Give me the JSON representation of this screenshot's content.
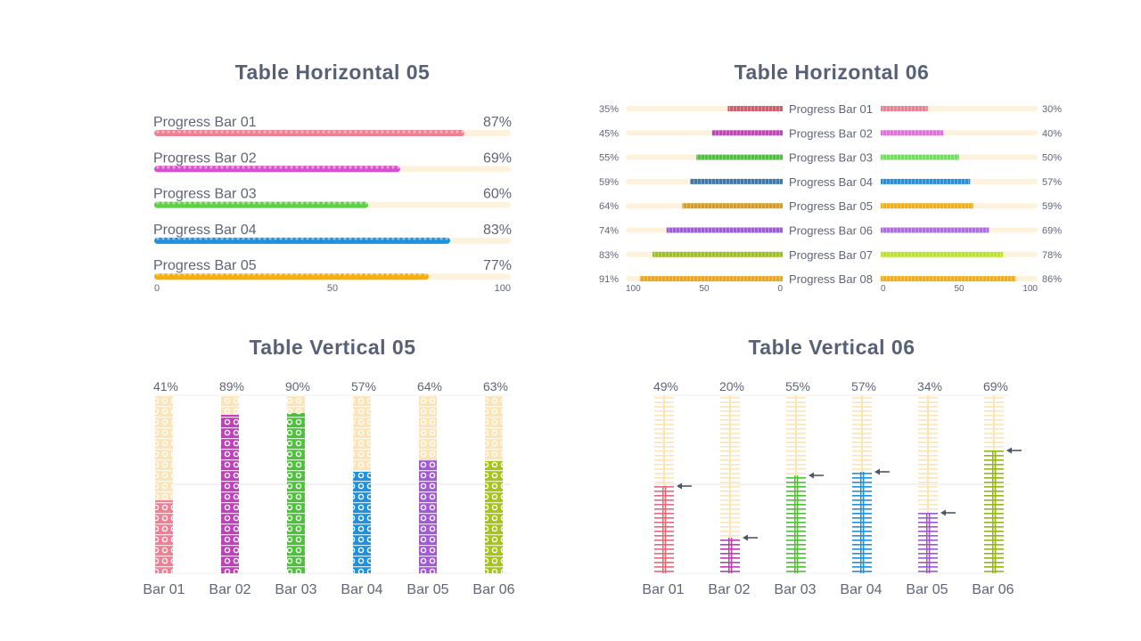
{
  "colors": {
    "bar01": "#ef7f93",
    "bar02": "#d94ed0",
    "bar03": "#5ccf45",
    "bar04": "#1e92de",
    "bar05": "#f5ae0c",
    "track": "#fdf2dc",
    "vtrack": "#fbe4b6",
    "text": "#5f6577",
    "title": "#566078",
    "arrow": "#4d5566"
  },
  "chart_data": [
    {
      "title": "Table Horizontal 05",
      "type": "bar",
      "orientation": "horizontal",
      "categories": [
        "Progress Bar 01",
        "Progress Bar 02",
        "Progress Bar 03",
        "Progress Bar 04",
        "Progress Bar 05"
      ],
      "values": [
        87,
        69,
        60,
        83,
        77
      ],
      "value_labels": [
        "87%",
        "69%",
        "60%",
        "83%",
        "77%"
      ],
      "colors": [
        "#ef7f93",
        "#d94ed0",
        "#5ccf45",
        "#1e92de",
        "#f5ae0c"
      ],
      "xlim": [
        0,
        100
      ],
      "ticks": [
        0,
        50,
        100
      ]
    },
    {
      "title": "Table Horizontal 06",
      "type": "bar",
      "orientation": "horizontal-mirrored",
      "categories": [
        "Progress Bar 01",
        "Progress Bar 02",
        "Progress Bar 03",
        "Progress Bar 04",
        "Progress Bar 05",
        "Progress Bar 06",
        "Progress Bar 07",
        "Progress Bar 08"
      ],
      "series": [
        {
          "name": "left",
          "values": [
            35,
            45,
            55,
            59,
            64,
            74,
            83,
            91
          ],
          "value_labels": [
            "35%",
            "45%",
            "55%",
            "59%",
            "64%",
            "74%",
            "83%",
            "91%"
          ],
          "colors": [
            "#d65a6a",
            "#c93fc4",
            "#4cc23a",
            "#3b7ab0",
            "#d99b18",
            "#a35ad9",
            "#9ec21a",
            "#f0a512"
          ]
        },
        {
          "name": "right",
          "values": [
            30,
            40,
            50,
            57,
            59,
            69,
            78,
            86
          ],
          "value_labels": [
            "30%",
            "40%",
            "50%",
            "57%",
            "59%",
            "69%",
            "78%",
            "86%"
          ],
          "colors": [
            "#ef7f93",
            "#e869e0",
            "#6fe05a",
            "#1e92de",
            "#f5ae0c",
            "#b36ae6",
            "#b8e61e",
            "#f5ae0c"
          ]
        }
      ],
      "left_ticks": [
        100,
        50,
        0
      ],
      "right_ticks": [
        0,
        50,
        100
      ],
      "xlim": [
        0,
        100
      ]
    },
    {
      "title": "Table Vertical 05",
      "type": "bar",
      "orientation": "vertical",
      "categories": [
        "Bar 01",
        "Bar 02",
        "Bar 03",
        "Bar 04",
        "Bar 05",
        "Bar 06"
      ],
      "values": [
        41,
        89,
        90,
        57,
        64,
        63
      ],
      "value_labels": [
        "41%",
        "89%",
        "90%",
        "57%",
        "64%",
        "63%"
      ],
      "colors": [
        "#ef7f93",
        "#c13fbd",
        "#4cc23a",
        "#1e92de",
        "#a35ad9",
        "#a6c41a"
      ],
      "ylim": [
        0,
        100
      ],
      "gridlines": [
        50
      ]
    },
    {
      "title": "Table Vertical 06",
      "type": "bar",
      "orientation": "vertical",
      "categories": [
        "Bar 01",
        "Bar 02",
        "Bar 03",
        "Bar 04",
        "Bar 05",
        "Bar 06"
      ],
      "values": [
        49,
        20,
        55,
        57,
        34,
        69
      ],
      "value_labels": [
        "49%",
        "20%",
        "55%",
        "57%",
        "34%",
        "69%"
      ],
      "colors": [
        "#e26a80",
        "#b83fb3",
        "#4cc23a",
        "#1e92de",
        "#9d58cf",
        "#92b81a"
      ],
      "ylim": [
        0,
        100
      ],
      "gridlines": [
        50
      ]
    }
  ]
}
